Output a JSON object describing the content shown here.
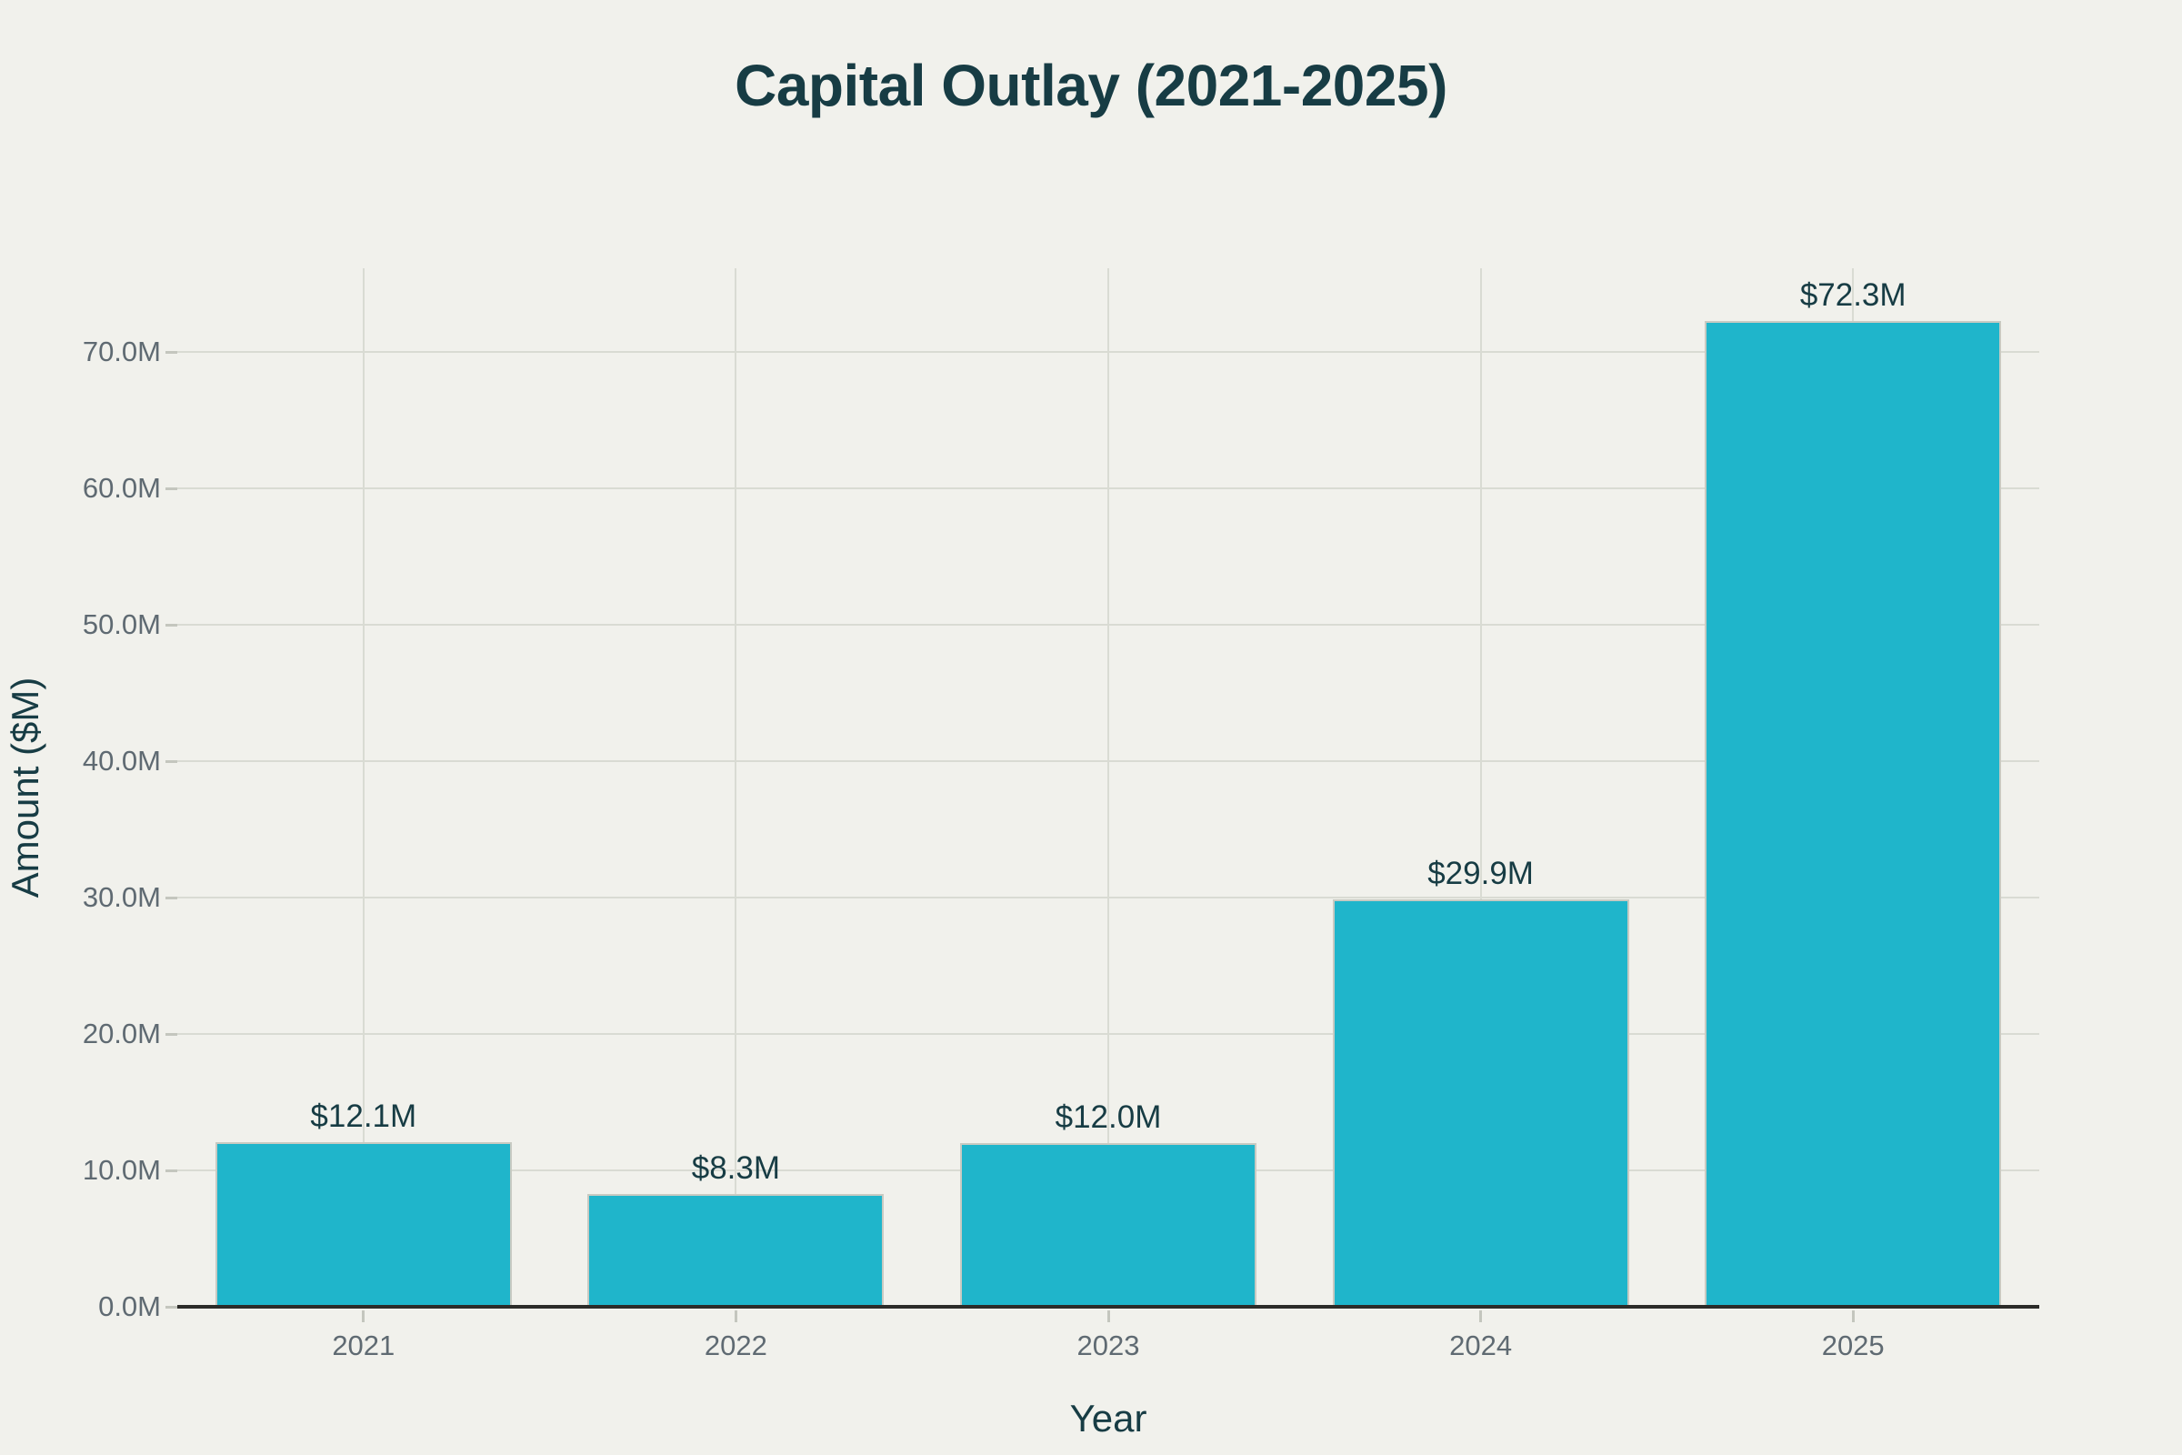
{
  "chart_data": {
    "type": "bar",
    "title": "Capital Outlay (2021-2025)",
    "xlabel": "Year",
    "ylabel": "Amount ($M)",
    "categories": [
      "2021",
      "2022",
      "2023",
      "2024",
      "2025"
    ],
    "values": [
      12.1,
      8.3,
      12.0,
      29.9,
      72.3
    ],
    "bar_labels": [
      "$12.1M",
      "$8.3M",
      "$12.0M",
      "$29.9M",
      "$72.3M"
    ],
    "y_tick_values": [
      0,
      10,
      20,
      30,
      40,
      50,
      60,
      70
    ],
    "y_tick_labels": [
      "0.0M",
      "10.0M",
      "20.0M",
      "30.0M",
      "40.0M",
      "50.0M",
      "60.0M",
      "70.0M"
    ],
    "ylim": [
      0,
      76.1
    ],
    "grid": true,
    "legend_position": "none",
    "colors": {
      "background": "#f1f1ec",
      "bar_fill": "#1fb5cb",
      "bar_stroke": "#c8cac2",
      "gridline": "#d9dbd3",
      "tick_mark": "#c4c6be",
      "axis_line": "#2c2c29",
      "tick_text": "#5f6a72",
      "title_text": "#173c44",
      "axis_title_text": "#173c44",
      "value_label_text": "#173c44"
    }
  }
}
